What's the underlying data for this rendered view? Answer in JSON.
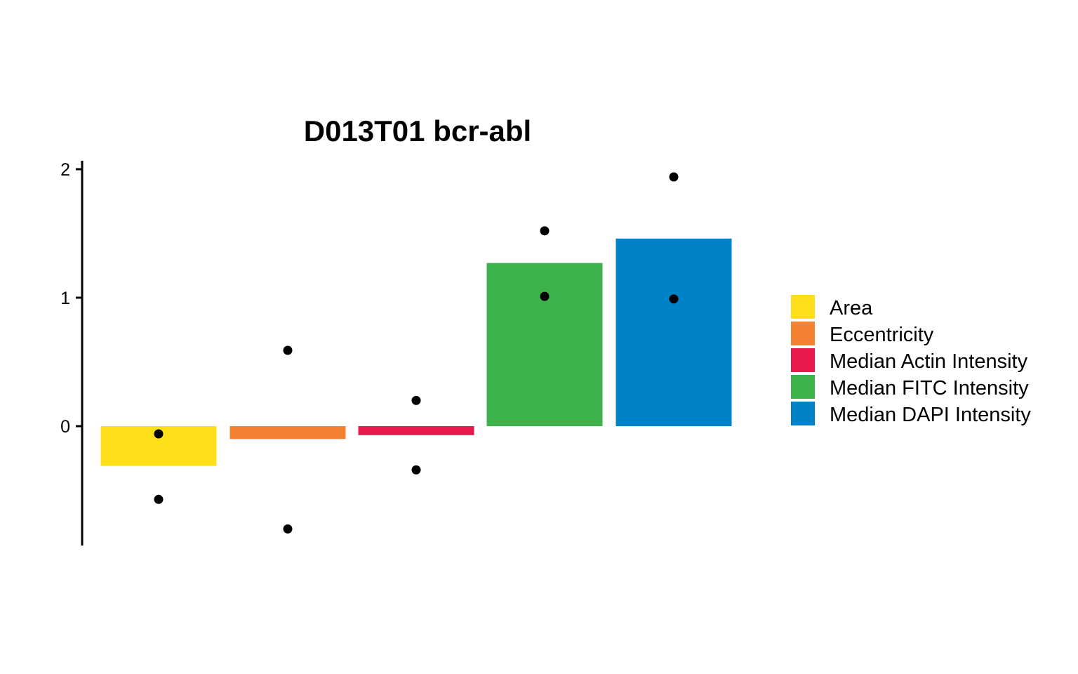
{
  "chart_data": {
    "type": "bar",
    "title": "D013T01 bcr-abl",
    "xlabel": "",
    "ylabel": "",
    "ylim": [
      -0.93,
      2.05
    ],
    "yticks": [
      0,
      1,
      2
    ],
    "grid": false,
    "legend_position": "right",
    "categories": [
      "Area",
      "Eccentricity",
      "Median Actin Intensity",
      "Median FITC Intensity",
      "Median DAPI Intensity"
    ],
    "values": [
      -0.31,
      -0.1,
      -0.07,
      1.27,
      1.46
    ],
    "colors": [
      "#FDE01A",
      "#F58233",
      "#E8194C",
      "#3DB24B",
      "#0082C8"
    ],
    "points": [
      [
        -0.06,
        -0.57
      ],
      [
        0.59,
        -0.8
      ],
      [
        0.2,
        -0.34
      ],
      [
        1.52,
        1.01
      ],
      [
        1.94,
        0.99
      ]
    ]
  }
}
